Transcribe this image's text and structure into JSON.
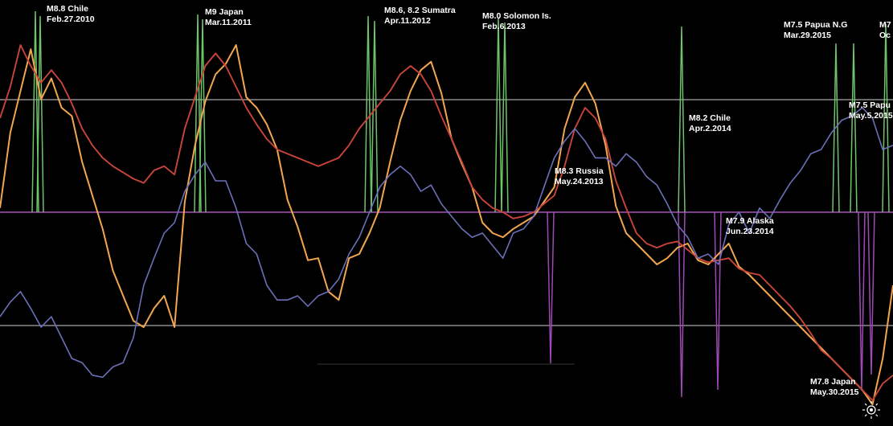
{
  "chart_data": {
    "type": "line",
    "title": "",
    "xlabel": "",
    "ylabel": "",
    "grid": false,
    "colors": {
      "background": "#000000",
      "orange_series": "#f2a650",
      "red_series": "#c9453b",
      "blue_series": "#6b70b8",
      "green_spikes": "#6ec46a",
      "purple_spikes": "#a148b8",
      "reference_line": "#a8a8a8",
      "purple_baseline": "#7d3f8a"
    },
    "series": [
      {
        "values": [
          2,
          38,
          58,
          78,
          54,
          64,
          50,
          46,
          24,
          8,
          -8,
          -28,
          -40,
          -52,
          -55,
          -46,
          -40,
          -55,
          5,
          32,
          53,
          66,
          71,
          80,
          55,
          50,
          42,
          30,
          6,
          -7,
          -23,
          -22,
          -38,
          -42,
          -22,
          -20,
          -10,
          2,
          24,
          44,
          58,
          68,
          72,
          57,
          35,
          23,
          12,
          -5,
          -10,
          -12,
          -8,
          -5,
          -2,
          5,
          12,
          40,
          55,
          62,
          52,
          32,
          3,
          -10,
          -15,
          -20,
          -25,
          -22,
          -17,
          -15,
          -23,
          -25,
          -20,
          -15,
          -26,
          -30,
          -35,
          -40,
          -45,
          -50,
          -55,
          -60,
          -65,
          -70,
          -75,
          -80,
          -85,
          -92,
          -70,
          -35
        ]
      },
      {
        "values": [
          45,
          60,
          80,
          70,
          62,
          68,
          62,
          52,
          40,
          32,
          26,
          22,
          19,
          16,
          14,
          20,
          22,
          18,
          40,
          55,
          70,
          76,
          70,
          60,
          50,
          42,
          35,
          30,
          28,
          26,
          24,
          22,
          24,
          26,
          32,
          40,
          46,
          52,
          58,
          66,
          70,
          66,
          58,
          46,
          35,
          24,
          12,
          6,
          2,
          0,
          -3,
          -2,
          0,
          4,
          8,
          22,
          40,
          50,
          45,
          35,
          15,
          2,
          -10,
          -15,
          -17,
          -15,
          -14,
          -18,
          -22,
          -24,
          -23,
          -22,
          -27,
          -29,
          -30,
          -35,
          -40,
          -45,
          -51,
          -58,
          -66,
          -70,
          -75,
          -80,
          -85,
          -90,
          -82,
          -78
        ]
      },
      {
        "values": [
          -50,
          -43,
          -38,
          -46,
          -55,
          -50,
          -60,
          -70,
          -72,
          -78,
          -79,
          -74,
          -72,
          -60,
          -35,
          -22,
          -10,
          -5,
          10,
          18,
          24,
          15,
          15,
          2,
          -15,
          -20,
          -35,
          -42,
          -42,
          -40,
          -45,
          -40,
          -38,
          -32,
          -20,
          -12,
          0,
          12,
          18,
          22,
          18,
          10,
          13,
          4,
          -2,
          -8,
          -12,
          -10,
          -16,
          -22,
          -10,
          -8,
          -2,
          12,
          26,
          34,
          40,
          34,
          26,
          26,
          22,
          28,
          24,
          17,
          13,
          4,
          -6,
          -12,
          -22,
          -20,
          -25,
          -6,
          0,
          -10,
          2,
          -3,
          6,
          14,
          20,
          28,
          30,
          38,
          44,
          46,
          50,
          45,
          30,
          32
        ]
      }
    ],
    "events": [
      {
        "label": "M8.8 Chile",
        "date": "Feb.27.2010",
        "direction": "up",
        "magnitude": 0.95
      },
      {
        "label": "M9 Japan",
        "date": "Mar.11.2011",
        "direction": "up",
        "magnitude": 0.95
      },
      {
        "label": "M8.6, 8.2 Sumatra",
        "date": "Apr.11.2012",
        "direction": "up",
        "magnitude": 0.95
      },
      {
        "label": "M8.0 Solomon Is.",
        "date": "Feb.6.2013",
        "direction": "up",
        "magnitude": 0.95
      },
      {
        "label": "M8.3 Russia",
        "date": "May.24.2013",
        "direction": "down",
        "magnitude": 0.95
      },
      {
        "label": "M8.2 Chile",
        "date": "Apr.2.2014",
        "direction": "both",
        "magnitude": 0.95
      },
      {
        "label": "M7.9 Alaska",
        "date": "Jun.23.2014",
        "direction": "down",
        "magnitude": 0.95
      },
      {
        "label": "M7.5 Papua N.G",
        "date": "Mar.29.2015",
        "direction": "up",
        "magnitude": 0.95
      },
      {
        "label": "M7.5 Papu",
        "date": "May.5.2015",
        "direction": "up",
        "magnitude": 0.95
      },
      {
        "label": "M7.8 Japan",
        "date": "May.30.2015",
        "direction": "down",
        "magnitude": 0.95
      },
      {
        "label": "M7",
        "date": "Oc",
        "direction": "up",
        "magnitude": 0.95
      }
    ]
  }
}
